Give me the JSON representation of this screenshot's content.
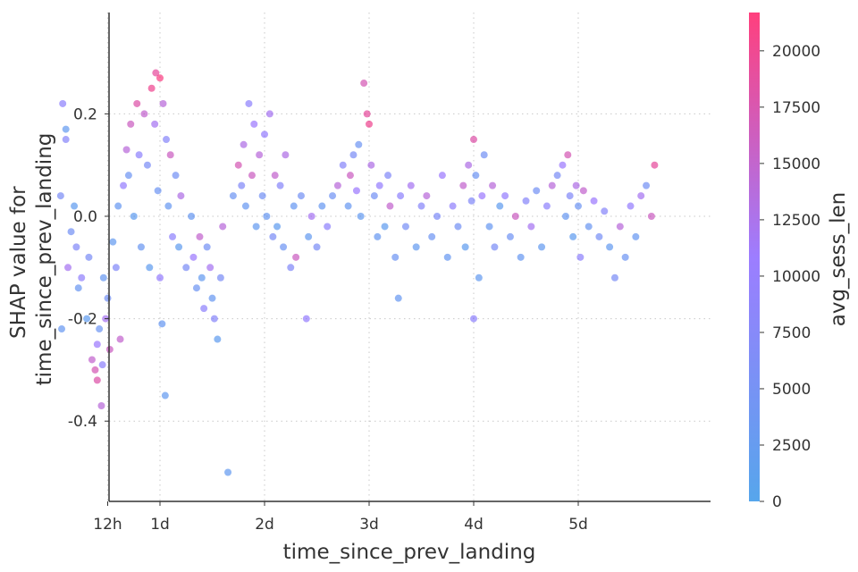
{
  "chart_data": {
    "type": "scatter",
    "title": "",
    "xlabel": "time_since_prev_landing",
    "ylabel_lines": [
      "SHAP value for",
      "time_since_prev_landing"
    ],
    "x_unit": "days",
    "xlim": [
      0.5,
      5.75
    ],
    "ylim": [
      -0.56,
      0.4
    ],
    "grid": "dotted",
    "x_ticks": [
      {
        "value": 0.5,
        "label": "12h"
      },
      {
        "value": 1,
        "label": "1d"
      },
      {
        "value": 2,
        "label": "2d"
      },
      {
        "value": 3,
        "label": "3d"
      },
      {
        "value": 4,
        "label": "4d"
      },
      {
        "value": 5,
        "label": "5d"
      }
    ],
    "y_ticks": [
      {
        "value": 0.2,
        "label": "0.2"
      },
      {
        "value": 0.0,
        "label": "0.0"
      },
      {
        "value": -0.2,
        "label": "-0.2"
      },
      {
        "value": -0.4,
        "label": "-0.4"
      }
    ],
    "colorbar": {
      "label": "avg_sess_len",
      "min": 0,
      "max": 21700,
      "low_color": "#1e88e5",
      "mid_color": "#7c52ff",
      "high_color": "#ff0052",
      "ticks": [
        {
          "value": 0,
          "label": "0"
        },
        {
          "value": 2500,
          "label": "2500"
        },
        {
          "value": 5000,
          "label": "5000"
        },
        {
          "value": 7500,
          "label": "7500"
        },
        {
          "value": 10000,
          "label": "10000"
        },
        {
          "value": 12500,
          "label": "12500"
        },
        {
          "value": 15000,
          "label": "15000"
        },
        {
          "value": 17500,
          "label": "17500"
        },
        {
          "value": 20000,
          "label": "20000"
        }
      ]
    },
    "series": [
      {
        "points": [
          {
            "x": 0.05,
            "y": 0.04,
            "c": 6000
          },
          {
            "x": 0.06,
            "y": -0.22,
            "c": 3000
          },
          {
            "x": 0.07,
            "y": 0.22,
            "c": 9000
          },
          {
            "x": 0.1,
            "y": 0.17,
            "c": 2500
          },
          {
            "x": 0.1,
            "y": 0.15,
            "c": 8000
          },
          {
            "x": 0.12,
            "y": -0.1,
            "c": 12000
          },
          {
            "x": 0.15,
            "y": -0.03,
            "c": 5000
          },
          {
            "x": 0.18,
            "y": 0.02,
            "c": 2000
          },
          {
            "x": 0.2,
            "y": -0.06,
            "c": 7000
          },
          {
            "x": 0.22,
            "y": -0.14,
            "c": 3500
          },
          {
            "x": 0.25,
            "y": -0.12,
            "c": 9500
          },
          {
            "x": 0.3,
            "y": -0.2,
            "c": 2000
          },
          {
            "x": 0.32,
            "y": -0.08,
            "c": 6000
          },
          {
            "x": 0.35,
            "y": -0.28,
            "c": 15000
          },
          {
            "x": 0.38,
            "y": -0.3,
            "c": 17000
          },
          {
            "x": 0.4,
            "y": -0.25,
            "c": 11000
          },
          {
            "x": 0.4,
            "y": -0.32,
            "c": 18000
          },
          {
            "x": 0.42,
            "y": -0.22,
            "c": 4000
          },
          {
            "x": 0.44,
            "y": -0.37,
            "c": 14000
          },
          {
            "x": 0.45,
            "y": -0.29,
            "c": 9000
          },
          {
            "x": 0.46,
            "y": -0.12,
            "c": 3000
          },
          {
            "x": 0.48,
            "y": -0.2,
            "c": 12000
          },
          {
            "x": 0.5,
            "y": -0.16,
            "c": 5000
          },
          {
            "x": 0.52,
            "y": -0.26,
            "c": 16000
          },
          {
            "x": 0.55,
            "y": -0.05,
            "c": 2500
          },
          {
            "x": 0.58,
            "y": -0.1,
            "c": 7000
          },
          {
            "x": 0.6,
            "y": 0.02,
            "c": 3000
          },
          {
            "x": 0.62,
            "y": -0.24,
            "c": 15000
          },
          {
            "x": 0.65,
            "y": 0.06,
            "c": 10000
          },
          {
            "x": 0.68,
            "y": 0.13,
            "c": 14000
          },
          {
            "x": 0.7,
            "y": 0.08,
            "c": 4000
          },
          {
            "x": 0.72,
            "y": 0.18,
            "c": 16000
          },
          {
            "x": 0.75,
            "y": 0.0,
            "c": 2000
          },
          {
            "x": 0.78,
            "y": 0.22,
            "c": 18000
          },
          {
            "x": 0.8,
            "y": 0.12,
            "c": 9000
          },
          {
            "x": 0.82,
            "y": -0.06,
            "c": 3500
          },
          {
            "x": 0.85,
            "y": 0.2,
            "c": 15000
          },
          {
            "x": 0.88,
            "y": 0.1,
            "c": 6000
          },
          {
            "x": 0.9,
            "y": -0.1,
            "c": 2000
          },
          {
            "x": 0.92,
            "y": 0.25,
            "c": 20000
          },
          {
            "x": 0.95,
            "y": 0.18,
            "c": 12000
          },
          {
            "x": 0.96,
            "y": 0.28,
            "c": 19000
          },
          {
            "x": 0.98,
            "y": 0.05,
            "c": 4000
          },
          {
            "x": 1.0,
            "y": 0.27,
            "c": 21000
          },
          {
            "x": 1.0,
            "y": -0.12,
            "c": 10000
          },
          {
            "x": 1.02,
            "y": -0.21,
            "c": 3000
          },
          {
            "x": 1.03,
            "y": 0.22,
            "c": 14000
          },
          {
            "x": 1.05,
            "y": -0.35,
            "c": 2500
          },
          {
            "x": 1.06,
            "y": 0.15,
            "c": 8000
          },
          {
            "x": 1.08,
            "y": 0.02,
            "c": 3000
          },
          {
            "x": 1.1,
            "y": 0.12,
            "c": 16000
          },
          {
            "x": 1.12,
            "y": -0.04,
            "c": 9000
          },
          {
            "x": 1.15,
            "y": 0.08,
            "c": 5000
          },
          {
            "x": 1.18,
            "y": -0.06,
            "c": 2000
          },
          {
            "x": 1.2,
            "y": 0.04,
            "c": 13000
          },
          {
            "x": 1.25,
            "y": -0.1,
            "c": 6000
          },
          {
            "x": 1.3,
            "y": 0.0,
            "c": 3000
          },
          {
            "x": 1.32,
            "y": -0.08,
            "c": 11000
          },
          {
            "x": 1.35,
            "y": -0.14,
            "c": 4000
          },
          {
            "x": 1.38,
            "y": -0.04,
            "c": 15000
          },
          {
            "x": 1.4,
            "y": -0.12,
            "c": 2500
          },
          {
            "x": 1.42,
            "y": -0.18,
            "c": 9000
          },
          {
            "x": 1.45,
            "y": -0.06,
            "c": 5000
          },
          {
            "x": 1.48,
            "y": -0.1,
            "c": 12000
          },
          {
            "x": 1.5,
            "y": -0.16,
            "c": 3000
          },
          {
            "x": 1.52,
            "y": -0.2,
            "c": 8000
          },
          {
            "x": 1.55,
            "y": -0.24,
            "c": 2000
          },
          {
            "x": 1.58,
            "y": -0.12,
            "c": 6000
          },
          {
            "x": 1.6,
            "y": -0.02,
            "c": 14000
          },
          {
            "x": 1.65,
            "y": -0.5,
            "c": 2500
          },
          {
            "x": 1.7,
            "y": 0.04,
            "c": 4000
          },
          {
            "x": 1.75,
            "y": 0.1,
            "c": 17000
          },
          {
            "x": 1.78,
            "y": 0.06,
            "c": 7000
          },
          {
            "x": 1.8,
            "y": 0.14,
            "c": 13000
          },
          {
            "x": 1.82,
            "y": 0.02,
            "c": 3000
          },
          {
            "x": 1.85,
            "y": 0.22,
            "c": 9000
          },
          {
            "x": 1.88,
            "y": 0.08,
            "c": 16000
          },
          {
            "x": 1.9,
            "y": 0.18,
            "c": 11000
          },
          {
            "x": 1.92,
            "y": -0.02,
            "c": 2500
          },
          {
            "x": 1.95,
            "y": 0.12,
            "c": 14000
          },
          {
            "x": 1.98,
            "y": 0.04,
            "c": 5000
          },
          {
            "x": 2.0,
            "y": 0.16,
            "c": 10000
          },
          {
            "x": 2.02,
            "y": 0.0,
            "c": 3000
          },
          {
            "x": 2.05,
            "y": 0.2,
            "c": 12000
          },
          {
            "x": 2.08,
            "y": -0.04,
            "c": 6000
          },
          {
            "x": 2.1,
            "y": 0.08,
            "c": 15000
          },
          {
            "x": 2.12,
            "y": -0.02,
            "c": 2000
          },
          {
            "x": 2.15,
            "y": 0.06,
            "c": 8000
          },
          {
            "x": 2.18,
            "y": -0.06,
            "c": 4000
          },
          {
            "x": 2.2,
            "y": 0.12,
            "c": 13000
          },
          {
            "x": 2.25,
            "y": -0.1,
            "c": 7000
          },
          {
            "x": 2.28,
            "y": 0.02,
            "c": 3000
          },
          {
            "x": 2.3,
            "y": -0.08,
            "c": 16000
          },
          {
            "x": 2.35,
            "y": 0.04,
            "c": 5000
          },
          {
            "x": 2.4,
            "y": -0.2,
            "c": 10000
          },
          {
            "x": 2.42,
            "y": -0.04,
            "c": 2500
          },
          {
            "x": 2.45,
            "y": 0.0,
            "c": 12000
          },
          {
            "x": 2.5,
            "y": -0.06,
            "c": 6000
          },
          {
            "x": 2.55,
            "y": 0.02,
            "c": 3000
          },
          {
            "x": 2.6,
            "y": -0.02,
            "c": 9000
          },
          {
            "x": 2.65,
            "y": 0.04,
            "c": 4500
          },
          {
            "x": 2.7,
            "y": 0.06,
            "c": 14000
          },
          {
            "x": 2.75,
            "y": 0.1,
            "c": 8000
          },
          {
            "x": 2.8,
            "y": 0.02,
            "c": 3000
          },
          {
            "x": 2.82,
            "y": 0.08,
            "c": 16000
          },
          {
            "x": 2.85,
            "y": 0.12,
            "c": 6000
          },
          {
            "x": 2.88,
            "y": 0.05,
            "c": 11000
          },
          {
            "x": 2.9,
            "y": 0.14,
            "c": 4000
          },
          {
            "x": 2.92,
            "y": 0.0,
            "c": 2500
          },
          {
            "x": 2.95,
            "y": 0.26,
            "c": 17000
          },
          {
            "x": 2.98,
            "y": 0.2,
            "c": 19000
          },
          {
            "x": 3.0,
            "y": 0.18,
            "c": 20000
          },
          {
            "x": 3.02,
            "y": 0.1,
            "c": 13000
          },
          {
            "x": 3.05,
            "y": 0.04,
            "c": 5000
          },
          {
            "x": 3.08,
            "y": -0.04,
            "c": 3000
          },
          {
            "x": 3.1,
            "y": 0.06,
            "c": 10000
          },
          {
            "x": 3.15,
            "y": -0.02,
            "c": 2000
          },
          {
            "x": 3.18,
            "y": 0.08,
            "c": 7000
          },
          {
            "x": 3.2,
            "y": 0.02,
            "c": 15000
          },
          {
            "x": 3.25,
            "y": -0.08,
            "c": 4000
          },
          {
            "x": 3.28,
            "y": -0.16,
            "c": 3000
          },
          {
            "x": 3.3,
            "y": 0.04,
            "c": 9000
          },
          {
            "x": 3.35,
            "y": -0.02,
            "c": 5500
          },
          {
            "x": 3.4,
            "y": 0.06,
            "c": 12000
          },
          {
            "x": 3.45,
            "y": -0.06,
            "c": 2500
          },
          {
            "x": 3.5,
            "y": 0.02,
            "c": 8000
          },
          {
            "x": 3.55,
            "y": 0.04,
            "c": 14000
          },
          {
            "x": 3.6,
            "y": -0.04,
            "c": 4000
          },
          {
            "x": 3.65,
            "y": 0.0,
            "c": 6500
          },
          {
            "x": 3.7,
            "y": 0.08,
            "c": 11000
          },
          {
            "x": 3.75,
            "y": -0.08,
            "c": 3000
          },
          {
            "x": 3.8,
            "y": 0.02,
            "c": 9500
          },
          {
            "x": 3.85,
            "y": -0.02,
            "c": 5000
          },
          {
            "x": 3.9,
            "y": 0.06,
            "c": 15000
          },
          {
            "x": 3.92,
            "y": -0.06,
            "c": 2000
          },
          {
            "x": 3.95,
            "y": 0.1,
            "c": 13000
          },
          {
            "x": 3.98,
            "y": 0.03,
            "c": 7000
          },
          {
            "x": 4.0,
            "y": 0.15,
            "c": 18000
          },
          {
            "x": 4.0,
            "y": -0.2,
            "c": 9000
          },
          {
            "x": 4.02,
            "y": 0.08,
            "c": 4000
          },
          {
            "x": 4.05,
            "y": -0.12,
            "c": 2500
          },
          {
            "x": 4.08,
            "y": 0.04,
            "c": 11000
          },
          {
            "x": 4.1,
            "y": 0.12,
            "c": 5000
          },
          {
            "x": 4.15,
            "y": -0.02,
            "c": 3000
          },
          {
            "x": 4.18,
            "y": 0.06,
            "c": 14000
          },
          {
            "x": 4.2,
            "y": -0.06,
            "c": 6000
          },
          {
            "x": 4.25,
            "y": 0.02,
            "c": 2000
          },
          {
            "x": 4.3,
            "y": 0.04,
            "c": 10000
          },
          {
            "x": 4.35,
            "y": -0.04,
            "c": 4500
          },
          {
            "x": 4.4,
            "y": 0.0,
            "c": 16000
          },
          {
            "x": 4.45,
            "y": -0.08,
            "c": 3000
          },
          {
            "x": 4.5,
            "y": 0.03,
            "c": 8000
          },
          {
            "x": 4.55,
            "y": -0.02,
            "c": 12000
          },
          {
            "x": 4.6,
            "y": 0.05,
            "c": 5000
          },
          {
            "x": 4.65,
            "y": -0.06,
            "c": 2500
          },
          {
            "x": 4.7,
            "y": 0.02,
            "c": 9000
          },
          {
            "x": 4.75,
            "y": 0.06,
            "c": 14000
          },
          {
            "x": 4.8,
            "y": 0.08,
            "c": 6000
          },
          {
            "x": 4.85,
            "y": 0.1,
            "c": 11000
          },
          {
            "x": 4.88,
            "y": 0.0,
            "c": 3000
          },
          {
            "x": 4.9,
            "y": 0.12,
            "c": 17000
          },
          {
            "x": 4.92,
            "y": 0.04,
            "c": 7000
          },
          {
            "x": 4.95,
            "y": -0.04,
            "c": 2000
          },
          {
            "x": 4.98,
            "y": 0.06,
            "c": 13000
          },
          {
            "x": 5.0,
            "y": 0.02,
            "c": 4000
          },
          {
            "x": 5.02,
            "y": -0.08,
            "c": 9000
          },
          {
            "x": 5.05,
            "y": 0.05,
            "c": 15000
          },
          {
            "x": 5.1,
            "y": -0.02,
            "c": 3500
          },
          {
            "x": 5.15,
            "y": 0.03,
            "c": 11000
          },
          {
            "x": 5.2,
            "y": -0.04,
            "c": 5500
          },
          {
            "x": 5.25,
            "y": 0.01,
            "c": 8000
          },
          {
            "x": 5.3,
            "y": -0.06,
            "c": 2500
          },
          {
            "x": 5.35,
            "y": -0.12,
            "c": 6000
          },
          {
            "x": 5.4,
            "y": -0.02,
            "c": 14000
          },
          {
            "x": 5.45,
            "y": -0.08,
            "c": 4000
          },
          {
            "x": 5.5,
            "y": 0.02,
            "c": 10000
          },
          {
            "x": 5.55,
            "y": -0.04,
            "c": 3000
          },
          {
            "x": 5.6,
            "y": 0.04,
            "c": 12000
          },
          {
            "x": 5.65,
            "y": 0.06,
            "c": 5000
          },
          {
            "x": 5.7,
            "y": 0.0,
            "c": 16000
          },
          {
            "x": 5.73,
            "y": 0.1,
            "c": 19000
          }
        ]
      }
    ]
  }
}
